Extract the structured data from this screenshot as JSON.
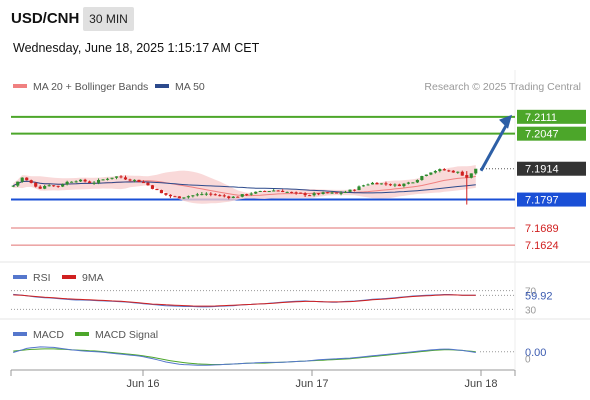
{
  "header": {
    "symbol": "USD/CNH",
    "timeframe": "30 MIN",
    "datetime": "Wednesday, June 18, 2025 1:15:17 AM CET"
  },
  "colors": {
    "candle_up": "#2e8b2e",
    "candle_down": "#d02020",
    "bollinger_fill": "#f7d0d0",
    "ma20": "#f08080",
    "ma50": "#2c4a8c",
    "resistance": "#4ca62a",
    "support": "#1a4fd6",
    "lower_levels": "#e07070",
    "price_tag": "#333333",
    "arrow": "#2d5fa6",
    "rsi": "#5577cc",
    "rsi_ma": "#d02020",
    "macd": "#5577cc",
    "macd_signal": "#4ca62a"
  },
  "chart_data": [
    {
      "type": "candlestick",
      "title": "",
      "legend": [
        {
          "label": "MA 20 + Bollinger Bands",
          "color": "#f08080"
        },
        {
          "label": "MA 50",
          "color": "#2c4a8c"
        }
      ],
      "legend_placement": "top-left",
      "watermark": "Research © 2025 Trading Central",
      "current_price": {
        "value": 7.1914,
        "label": "7.1914"
      },
      "levels": [
        {
          "value": 7.2111,
          "label": "7.2111",
          "kind": "resistance",
          "style": "tag"
        },
        {
          "value": 7.2047,
          "label": "7.2047",
          "kind": "resistance",
          "style": "tag"
        },
        {
          "value": 7.1797,
          "label": "7.1797",
          "kind": "pivot",
          "style": "tag"
        },
        {
          "value": 7.1689,
          "label": "7.1689",
          "kind": "support",
          "style": "text"
        },
        {
          "value": 7.1624,
          "label": "7.1624",
          "kind": "support",
          "style": "text"
        }
      ],
      "arrow": {
        "from": 7.1914,
        "to": 7.2111,
        "direction": "up"
      },
      "x_ticks": [
        "Jun 16",
        "Jun 17",
        "Jun 18"
      ],
      "close_path": [
        7.185,
        7.188,
        7.186,
        7.184,
        7.1855,
        7.1845,
        7.1862,
        7.187,
        7.1868,
        7.186,
        7.187,
        7.188,
        7.1885,
        7.1875,
        7.187,
        7.186,
        7.184,
        7.182,
        7.181,
        7.1805,
        7.181,
        7.1815,
        7.182,
        7.1815,
        7.181,
        7.1805,
        7.1812,
        7.182,
        7.1825,
        7.183,
        7.1832,
        7.1828,
        7.1822,
        7.1818,
        7.1815,
        7.182,
        7.1822,
        7.182,
        7.1826,
        7.1835,
        7.185,
        7.186,
        7.1858,
        7.1855,
        7.185,
        7.1858,
        7.1868,
        7.189,
        7.1905,
        7.191,
        7.1905,
        7.19,
        7.188,
        7.191
      ],
      "ylim": [
        7.156,
        7.219
      ]
    },
    {
      "type": "line",
      "title": "",
      "legend": [
        {
          "label": "RSI",
          "color": "#5577cc"
        },
        {
          "label": "9MA",
          "color": "#d02020"
        }
      ],
      "y_ticks": [
        "70",
        "30"
      ],
      "current": {
        "value": 59.92,
        "label": "59.92"
      },
      "rsi_path": [
        62,
        60,
        57,
        55,
        54,
        52,
        50,
        50,
        49,
        48,
        47,
        46,
        44,
        42,
        40,
        38,
        37,
        36,
        36,
        35,
        36,
        37,
        38,
        40,
        41,
        42,
        44,
        46,
        47,
        48,
        47,
        46,
        45,
        47,
        48,
        50,
        52,
        53,
        55,
        57,
        59,
        60,
        61,
        62,
        61,
        60,
        60
      ],
      "ma_path": [
        61,
        60,
        58,
        56,
        55,
        53,
        52,
        51,
        50,
        49,
        48,
        47,
        45,
        43,
        41,
        40,
        39,
        38,
        37,
        37,
        37,
        38,
        39,
        40,
        41,
        42,
        43,
        45,
        46,
        47,
        47,
        46,
        46,
        46,
        47,
        49,
        51,
        52,
        54,
        56,
        58,
        59,
        60,
        61,
        61,
        60,
        60
      ],
      "ylim": [
        20,
        80
      ]
    },
    {
      "type": "line",
      "title": "",
      "legend": [
        {
          "label": "MACD",
          "color": "#5577cc"
        },
        {
          "label": "MACD Signal",
          "color": "#4ca62a"
        }
      ],
      "y_ticks": [
        "0"
      ],
      "current": {
        "value": 0.0,
        "label": "0.00"
      },
      "macd_path": [
        0.6,
        1.2,
        1.4,
        1.3,
        1.0,
        0.8,
        0.7,
        0.5,
        0.3,
        0.1,
        -0.3,
        -0.8,
        -1.1,
        -1.2,
        -1.2,
        -1.1,
        -1.0,
        -0.9,
        -0.8,
        -0.8,
        -0.7,
        -0.6,
        -0.4,
        -0.3,
        -0.2,
        0.0,
        0.2,
        0.4,
        0.6,
        0.8,
        1.0,
        1.1,
        0.9,
        0.6
      ],
      "signal_path": [
        0.8,
        1.0,
        1.1,
        1.1,
        1.0,
        0.9,
        0.8,
        0.6,
        0.4,
        0.2,
        -0.1,
        -0.5,
        -0.8,
        -1.0,
        -1.1,
        -1.1,
        -1.0,
        -0.9,
        -0.9,
        -0.8,
        -0.7,
        -0.6,
        -0.5,
        -0.4,
        -0.3,
        -0.1,
        0.1,
        0.3,
        0.5,
        0.7,
        0.9,
        1.0,
        0.9,
        0.7
      ],
      "ylim": [
        -1.6,
        1.8
      ]
    }
  ]
}
